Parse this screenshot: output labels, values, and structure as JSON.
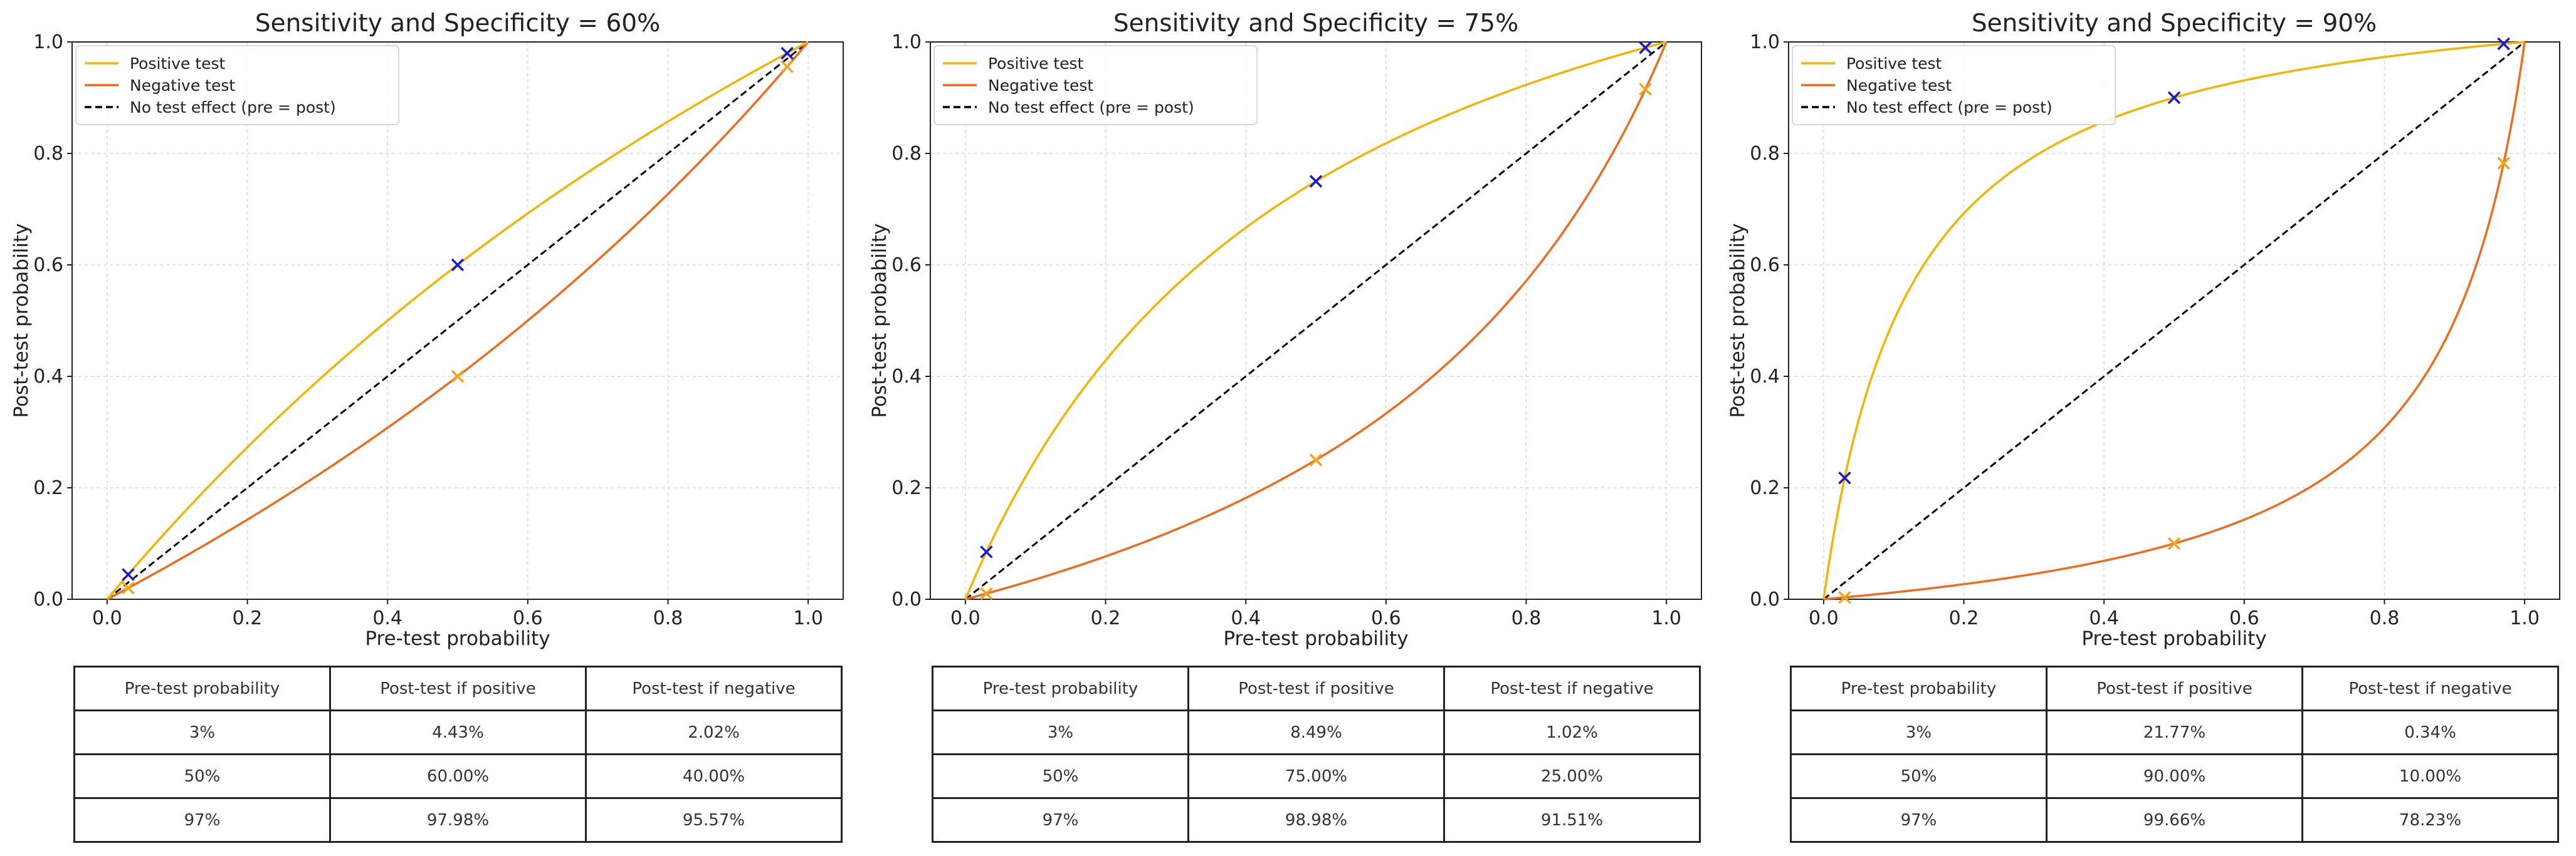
{
  "colors": {
    "positive": "#f5b400",
    "negative": "#f26b1d",
    "diagonal": "#000000",
    "marker_positive": "#1a1acc",
    "marker_negative": "#f5a31b",
    "grid": "#d9d9d9"
  },
  "chart_data": [
    {
      "type": "line",
      "title": "Sensitivity and Specificity = 60%",
      "sensitivity": 0.6,
      "specificity": 0.6,
      "xlabel": "Pre-test probability",
      "ylabel": "Post-test probability",
      "xlim": [
        0,
        1
      ],
      "ylim": [
        0,
        1
      ],
      "xticks": [
        "0.0",
        "0.2",
        "0.4",
        "0.6",
        "0.8",
        "1.0"
      ],
      "yticks": [
        "0.0",
        "0.2",
        "0.4",
        "0.6",
        "0.8",
        "1.0"
      ],
      "grid": true,
      "legend_position": "top-left",
      "legend": [
        "Positive test",
        "Negative test",
        "No test effect (pre = post)"
      ],
      "markers_positive": [
        [
          0.03,
          0.0443
        ],
        [
          0.5,
          0.6
        ],
        [
          0.97,
          0.9798
        ]
      ],
      "markers_negative": [
        [
          0.03,
          0.0202
        ],
        [
          0.5,
          0.4
        ],
        [
          0.97,
          0.9557
        ]
      ],
      "table": {
        "headers": [
          "Pre-test probability",
          "Post-test if positive",
          "Post-test if negative"
        ],
        "rows": [
          [
            "3%",
            "4.43%",
            "2.02%"
          ],
          [
            "50%",
            "60.00%",
            "40.00%"
          ],
          [
            "97%",
            "97.98%",
            "95.57%"
          ]
        ]
      }
    },
    {
      "type": "line",
      "title": "Sensitivity and Specificity = 75%",
      "sensitivity": 0.75,
      "specificity": 0.75,
      "xlabel": "Pre-test probability",
      "ylabel": "Post-test probability",
      "xlim": [
        0,
        1
      ],
      "ylim": [
        0,
        1
      ],
      "xticks": [
        "0.0",
        "0.2",
        "0.4",
        "0.6",
        "0.8",
        "1.0"
      ],
      "yticks": [
        "0.0",
        "0.2",
        "0.4",
        "0.6",
        "0.8",
        "1.0"
      ],
      "grid": true,
      "legend_position": "top-left",
      "legend": [
        "Positive test",
        "Negative test",
        "No test effect (pre = post)"
      ],
      "markers_positive": [
        [
          0.03,
          0.0849
        ],
        [
          0.5,
          0.75
        ],
        [
          0.97,
          0.9898
        ]
      ],
      "markers_negative": [
        [
          0.03,
          0.0102
        ],
        [
          0.5,
          0.25
        ],
        [
          0.97,
          0.9151
        ]
      ],
      "table": {
        "headers": [
          "Pre-test probability",
          "Post-test if positive",
          "Post-test if negative"
        ],
        "rows": [
          [
            "3%",
            "8.49%",
            "1.02%"
          ],
          [
            "50%",
            "75.00%",
            "25.00%"
          ],
          [
            "97%",
            "98.98%",
            "91.51%"
          ]
        ]
      }
    },
    {
      "type": "line",
      "title": "Sensitivity and Specificity = 90%",
      "sensitivity": 0.9,
      "specificity": 0.9,
      "xlabel": "Pre-test probability",
      "ylabel": "Post-test probability",
      "xlim": [
        0,
        1
      ],
      "ylim": [
        0,
        1
      ],
      "xticks": [
        "0.0",
        "0.2",
        "0.4",
        "0.6",
        "0.8",
        "1.0"
      ],
      "yticks": [
        "0.0",
        "0.2",
        "0.4",
        "0.6",
        "0.8",
        "1.0"
      ],
      "grid": true,
      "legend_position": "top-left",
      "legend": [
        "Positive test",
        "Negative test",
        "No test effect (pre = post)"
      ],
      "markers_positive": [
        [
          0.03,
          0.2177
        ],
        [
          0.5,
          0.9
        ],
        [
          0.97,
          0.9966
        ]
      ],
      "markers_negative": [
        [
          0.03,
          0.0034
        ],
        [
          0.5,
          0.1
        ],
        [
          0.97,
          0.7823
        ]
      ],
      "table": {
        "headers": [
          "Pre-test probability",
          "Post-test if positive",
          "Post-test if negative"
        ],
        "rows": [
          [
            "3%",
            "21.77%",
            "0.34%"
          ],
          [
            "50%",
            "90.00%",
            "10.00%"
          ],
          [
            "97%",
            "99.66%",
            "78.23%"
          ]
        ]
      }
    }
  ]
}
